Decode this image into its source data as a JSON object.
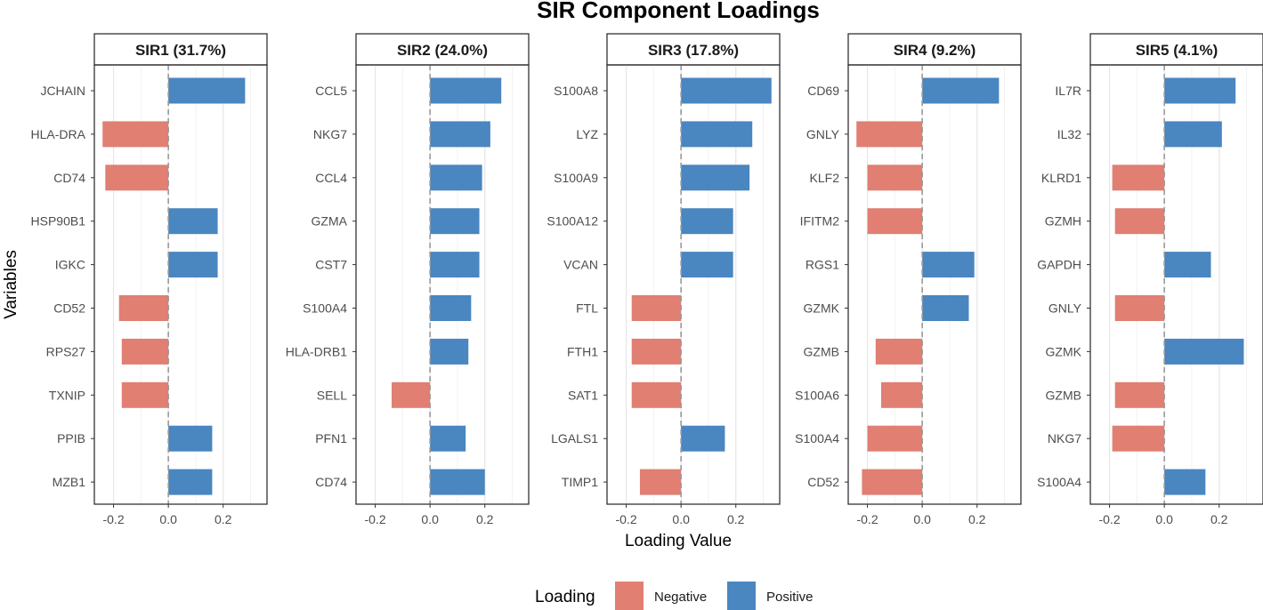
{
  "chart_data": {
    "type": "bar",
    "orientation": "horizontal",
    "title": "SIR Component Loadings",
    "xlabel": "Loading Value",
    "ylabel": "Variables",
    "xlim": [
      -0.27,
      0.36
    ],
    "xticks": [
      -0.2,
      0.0,
      0.2
    ],
    "xtick_labels": [
      "-0.2",
      "0.0",
      "0.2"
    ],
    "reference_line": 0,
    "grid": "vertical major and minor",
    "legend": {
      "title": "Loading",
      "position": "bottom",
      "entries": [
        {
          "label": "Negative",
          "color": "#E07F72"
        },
        {
          "label": "Positive",
          "color": "#4A86C0"
        }
      ]
    },
    "colors": {
      "negative": "#E07F72",
      "positive": "#4A86C0"
    },
    "panels": [
      {
        "label": "SIR1 (31.7%)",
        "categories": [
          "JCHAIN",
          "HLA-DRA",
          "CD74",
          "HSP90B1",
          "IGKC",
          "CD52",
          "RPS27",
          "TXNIP",
          "PPIB",
          "MZB1"
        ],
        "values": [
          0.28,
          -0.24,
          -0.23,
          0.18,
          0.18,
          -0.18,
          -0.17,
          -0.17,
          0.16,
          0.16
        ]
      },
      {
        "label": "SIR2 (24.0%)",
        "categories": [
          "CCL5",
          "NKG7",
          "CCL4",
          "GZMA",
          "CST7",
          "S100A4",
          "HLA-DRB1",
          "SELL",
          "PFN1",
          "CD74"
        ],
        "values": [
          0.26,
          0.22,
          0.19,
          0.18,
          0.18,
          0.15,
          0.14,
          -0.14,
          0.13,
          0.2
        ]
      },
      {
        "label": "SIR3 (17.8%)",
        "categories": [
          "S100A8",
          "LYZ",
          "S100A9",
          "S100A12",
          "VCAN",
          "FTL",
          "FTH1",
          "SAT1",
          "LGALS1",
          "TIMP1"
        ],
        "values": [
          0.33,
          0.26,
          0.25,
          0.19,
          0.19,
          -0.18,
          -0.18,
          -0.18,
          0.16,
          -0.15
        ]
      },
      {
        "label": "SIR4 (9.2%)",
        "categories": [
          "CD69",
          "GNLY",
          "KLF2",
          "IFITM2",
          "RGS1",
          "GZMK",
          "GZMB",
          "S100A6",
          "S100A4",
          "CD52"
        ],
        "values": [
          0.28,
          -0.24,
          -0.2,
          -0.2,
          0.19,
          0.17,
          -0.17,
          -0.15,
          -0.2,
          -0.22
        ]
      },
      {
        "label": "SIR5 (4.1%)",
        "categories": [
          "IL7R",
          "IL32",
          "KLRD1",
          "GZMH",
          "GAPDH",
          "GNLY",
          "GZMK",
          "GZMB",
          "NKG7",
          "S100A4"
        ],
        "values": [
          0.26,
          0.21,
          -0.19,
          -0.18,
          0.17,
          -0.18,
          0.29,
          -0.18,
          -0.19,
          0.15
        ]
      }
    ]
  }
}
